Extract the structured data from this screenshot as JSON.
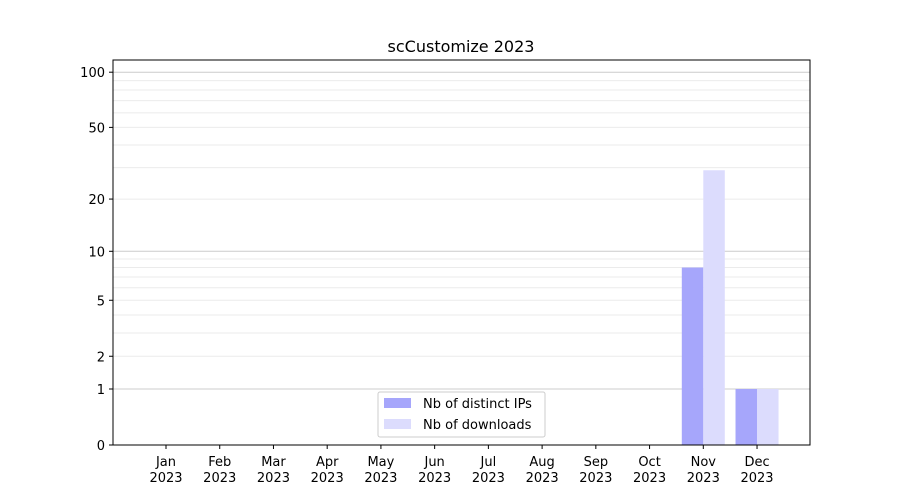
{
  "chart_data": {
    "type": "bar",
    "title": "scCustomize 2023",
    "xlabel": "",
    "ylabel": "",
    "yscale": "symlog",
    "ylim": [
      0,
      120
    ],
    "yticks": [
      0,
      1,
      2,
      5,
      10,
      20,
      50,
      100
    ],
    "grid": true,
    "legend_position": "bottom-center",
    "categories": [
      "Jan\n2023",
      "Feb\n2023",
      "Mar\n2023",
      "Apr\n2023",
      "May\n2023",
      "Jun\n2023",
      "Jul\n2023",
      "Aug\n2023",
      "Sep\n2023",
      "Oct\n2023",
      "Nov\n2023",
      "Dec\n2023"
    ],
    "series": [
      {
        "name": "Nb of distinct IPs",
        "color": "#a6a6fb",
        "values": [
          0,
          0,
          0,
          0,
          0,
          0,
          0,
          0,
          0,
          0,
          8,
          1
        ]
      },
      {
        "name": "Nb of downloads",
        "color": "#dcdcfd",
        "values": [
          0,
          0,
          0,
          0,
          0,
          0,
          0,
          0,
          0,
          0,
          29,
          1
        ]
      }
    ]
  }
}
